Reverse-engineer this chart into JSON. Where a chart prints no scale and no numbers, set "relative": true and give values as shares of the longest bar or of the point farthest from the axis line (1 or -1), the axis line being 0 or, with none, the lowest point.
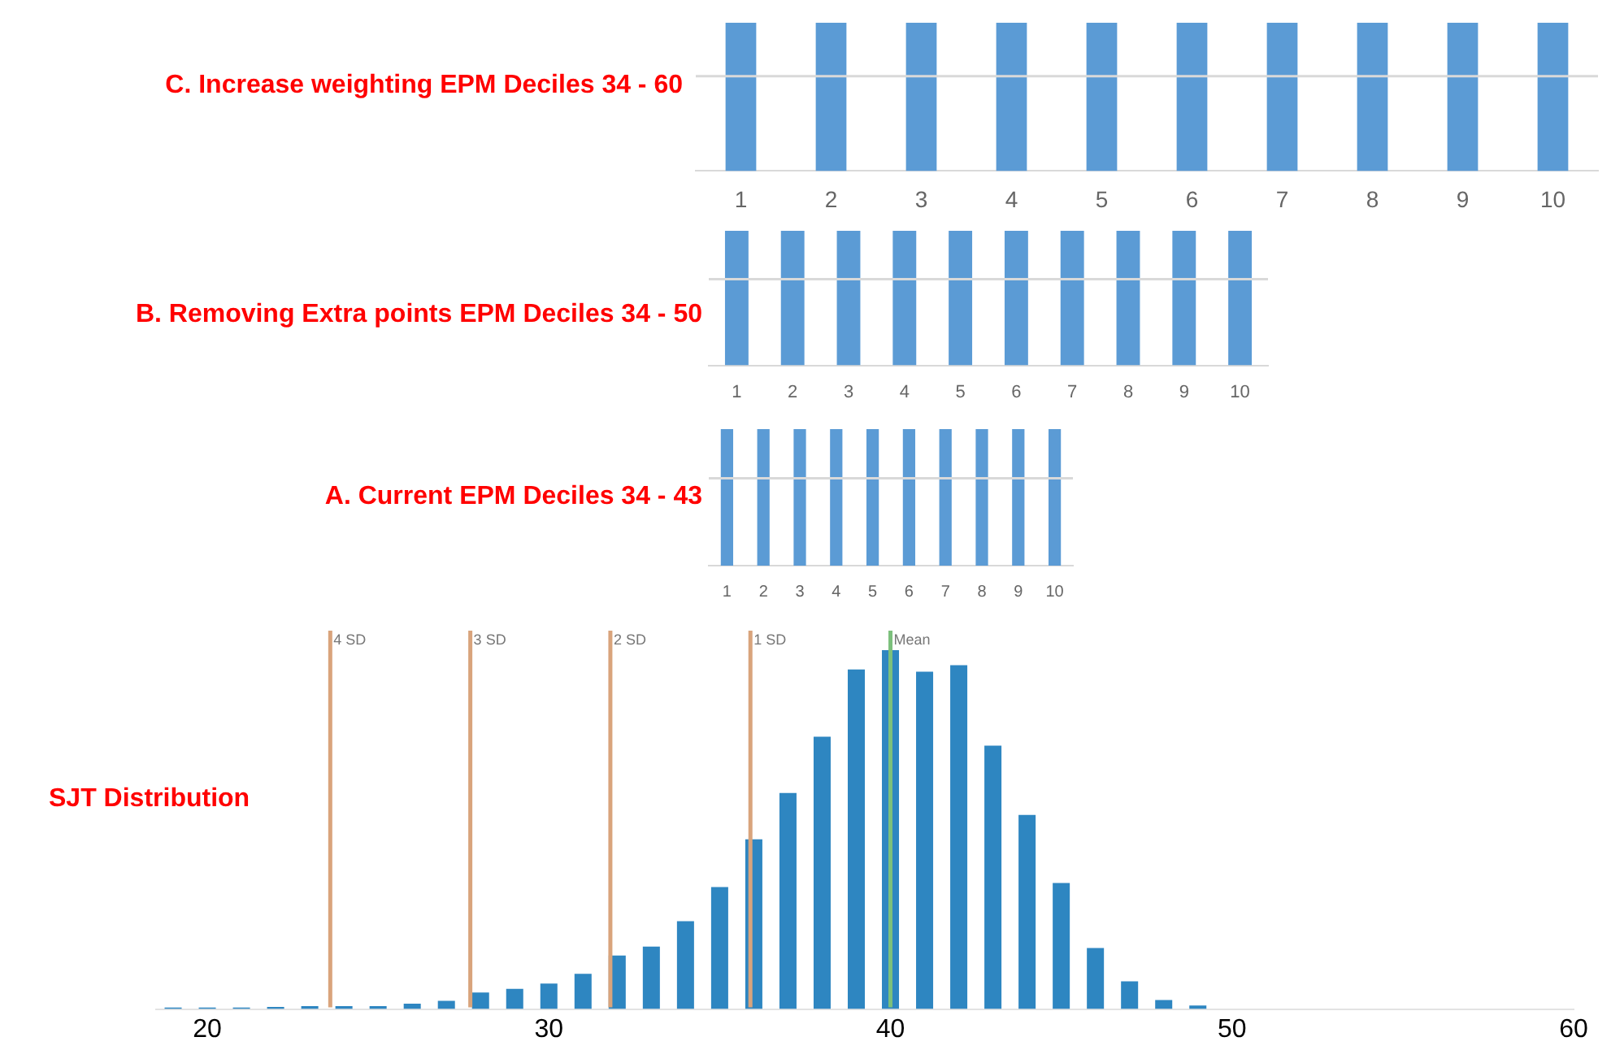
{
  "chart_data": [
    {
      "type": "bar",
      "title": "C. Increase weighting EPM Deciles 34 - 60",
      "categories": [
        "1",
        "2",
        "3",
        "4",
        "5",
        "6",
        "7",
        "8",
        "9",
        "10"
      ],
      "values": [
        1,
        1,
        1,
        1,
        1,
        1,
        1,
        1,
        1,
        1
      ],
      "color": "#5b9bd5",
      "relative": true,
      "ref_lines": [
        {
          "axis": "y",
          "value": 0.64,
          "color": "#d9d9d9"
        }
      ]
    },
    {
      "type": "bar",
      "title": "B. Removing Extra points EPM Deciles 34 - 50",
      "categories": [
        "1",
        "2",
        "3",
        "4",
        "5",
        "6",
        "7",
        "8",
        "9",
        "10"
      ],
      "values": [
        1,
        1,
        1,
        1,
        1,
        1,
        1,
        1,
        1,
        1
      ],
      "color": "#5b9bd5",
      "relative": true,
      "ref_lines": [
        {
          "axis": "y",
          "value": 0.64,
          "color": "#d9d9d9"
        }
      ]
    },
    {
      "type": "bar",
      "title": "A. Current EPM Deciles 34 - 43",
      "categories": [
        "1",
        "2",
        "3",
        "4",
        "5",
        "6",
        "7",
        "8",
        "9",
        "10"
      ],
      "values": [
        1,
        1,
        1,
        1,
        1,
        1,
        1,
        1,
        1,
        1
      ],
      "color": "#5b9bd5",
      "relative": true,
      "ref_lines": [
        {
          "axis": "y",
          "value": 0.64,
          "color": "#d9d9d9"
        }
      ]
    },
    {
      "type": "bar",
      "title": "SJT Distribution",
      "x": [
        19,
        20,
        21,
        22,
        23,
        24,
        25,
        26,
        27,
        28,
        29,
        30,
        31,
        32,
        33,
        34,
        35,
        36,
        37,
        38,
        39,
        40,
        41,
        42,
        43,
        44,
        45,
        46,
        47,
        48,
        49
      ],
      "values": [
        0.004,
        0.004,
        0.004,
        0.006,
        0.008,
        0.008,
        0.008,
        0.015,
        0.023,
        0.046,
        0.056,
        0.071,
        0.098,
        0.149,
        0.174,
        0.245,
        0.34,
        0.473,
        0.602,
        0.759,
        0.946,
        1,
        0.94,
        0.958,
        0.734,
        0.541,
        0.351,
        0.17,
        0.077,
        0.025,
        0.01
      ],
      "color": "#2e86c1",
      "relative": true,
      "grid": false,
      "xlim": [
        18.5,
        60
      ],
      "xticks": [
        20,
        30,
        40,
        50,
        60
      ],
      "ref_lines": [
        {
          "axis": "x",
          "value": 23.6,
          "label": "4 SD",
          "color": "#d9a47c"
        },
        {
          "axis": "x",
          "value": 27.7,
          "label": "3 SD",
          "color": "#d9a47c"
        },
        {
          "axis": "x",
          "value": 31.8,
          "label": "2 SD",
          "color": "#d9a47c"
        },
        {
          "axis": "x",
          "value": 35.9,
          "label": "1 SD",
          "color": "#d9a47c"
        },
        {
          "axis": "x",
          "value": 40,
          "label": "Mean",
          "color": "#7cc07c"
        }
      ]
    }
  ]
}
